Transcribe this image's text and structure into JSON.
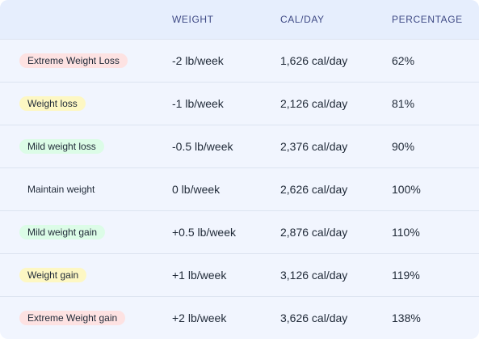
{
  "header": {
    "col_category": "",
    "col_weight": "WEIGHT",
    "col_cal": "CAL/DAY",
    "col_pct": "PERCENTAGE"
  },
  "rows": [
    {
      "label": "Extreme Weight Loss",
      "weight": "-2 lb/week",
      "cal": "1,626 cal/day",
      "pct": "62%",
      "badge_color": "#fde2e2"
    },
    {
      "label": "Weight loss",
      "weight": "-1 lb/week",
      "cal": "2,126 cal/day",
      "pct": "81%",
      "badge_color": "#fdf7c3"
    },
    {
      "label": "Mild weight loss",
      "weight": "-0.5 lb/week",
      "cal": "2,376 cal/day",
      "pct": "90%",
      "badge_color": "#dcfce7"
    },
    {
      "label": "Maintain weight",
      "weight": "0 lb/week",
      "cal": "2,626 cal/day",
      "pct": "100%",
      "badge_color": "#f1f5fe"
    },
    {
      "label": "Mild weight gain",
      "weight": "+0.5 lb/week",
      "cal": "2,876 cal/day",
      "pct": "110%",
      "badge_color": "#dcfce7"
    },
    {
      "label": "Weight gain",
      "weight": "+1 lb/week",
      "cal": "3,126 cal/day",
      "pct": "119%",
      "badge_color": "#fdf7c3"
    },
    {
      "label": "Extreme Weight gain",
      "weight": "+2 lb/week",
      "cal": "3,626 cal/day",
      "pct": "138%",
      "badge_color": "#fde2e2"
    }
  ]
}
